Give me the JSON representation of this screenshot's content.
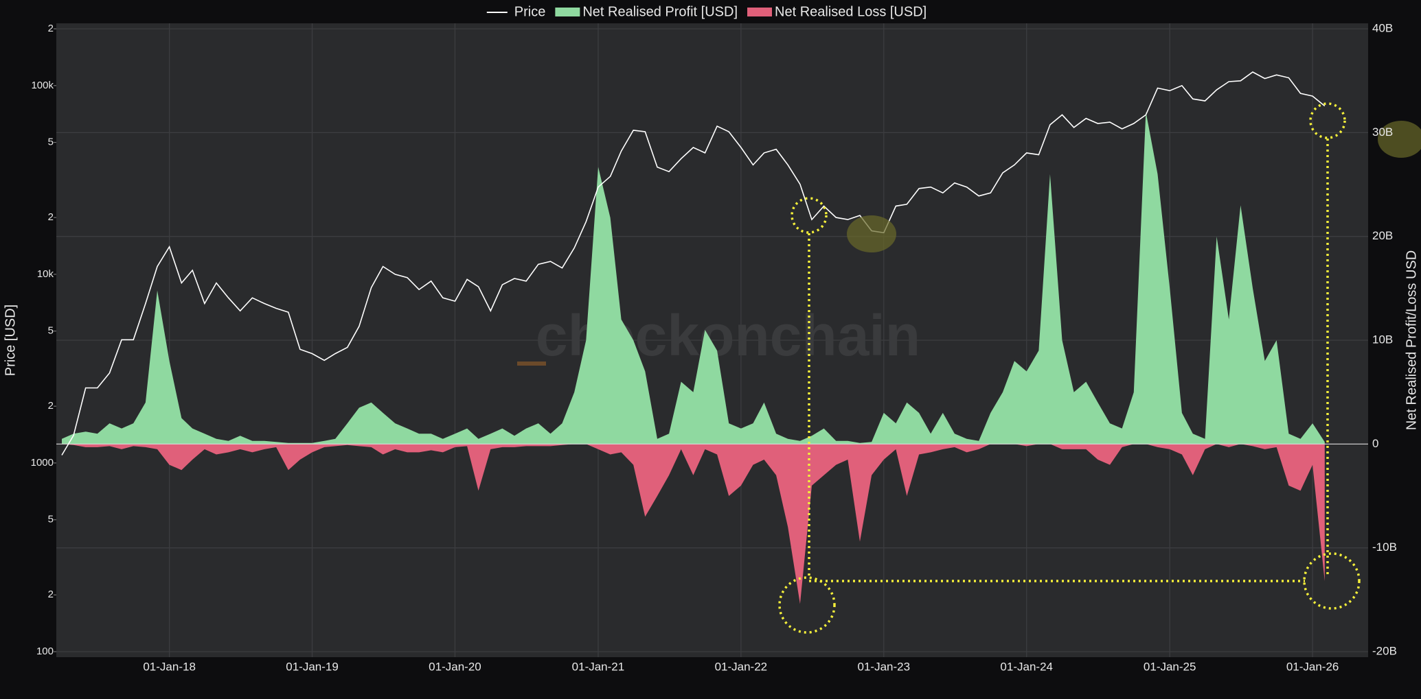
{
  "chart_data": {
    "type": "line-area",
    "watermark": "checkonchain",
    "y_label": "Price [USD]",
    "y2_label": "Net Realised Profit/Loss USD",
    "log_y": true,
    "grid": true,
    "legend": "top",
    "xlim": [
      "2017-03-18",
      "2026-05-23"
    ],
    "xticks": [
      {
        "value": "2018-01-01",
        "label": "01-Jan-18"
      },
      {
        "value": "2019-01-01",
        "label": "01-Jan-19"
      },
      {
        "value": "2020-01-01",
        "label": "01-Jan-20"
      },
      {
        "value": "2021-01-01",
        "label": "01-Jan-21"
      },
      {
        "value": "2022-01-01",
        "label": "01-Jan-22"
      },
      {
        "value": "2023-01-01",
        "label": "01-Jan-23"
      },
      {
        "value": "2024-01-01",
        "label": "01-Jan-24"
      },
      {
        "value": "2025-01-01",
        "label": "01-Jan-25"
      },
      {
        "value": "2026-01-01",
        "label": "01-Jan-26"
      }
    ],
    "ylim": [
      100,
      200000
    ],
    "yticks": [
      100,
      {
        "value": 200,
        "label": "2"
      },
      {
        "value": 500,
        "label": "5"
      },
      1000,
      {
        "value": 2000,
        "label": "2"
      },
      {
        "value": 5000,
        "label": "5"
      },
      {
        "value": 10000,
        "label": "10k"
      },
      {
        "value": 20000,
        "label": "2"
      },
      {
        "value": 50000,
        "label": "5"
      },
      {
        "value": 100000,
        "label": "100k"
      },
      {
        "value": 200000,
        "label": "2"
      }
    ],
    "y2lim": [
      -20,
      40
    ],
    "y2ticks": [
      {
        "value": -20,
        "label": "-20B"
      },
      {
        "value": -10,
        "label": "-10B"
      },
      0,
      {
        "value": 10,
        "label": "10B"
      },
      {
        "value": 20,
        "label": "20B"
      },
      {
        "value": 30,
        "label": "30B"
      },
      {
        "value": 40,
        "label": "40B"
      }
    ],
    "x": [
      "2017-04-01",
      "2017-05-01",
      "2017-06-01",
      "2017-07-01",
      "2017-08-01",
      "2017-09-01",
      "2017-10-01",
      "2017-11-01",
      "2017-12-01",
      "2018-01-01",
      "2018-02-01",
      "2018-03-01",
      "2018-04-01",
      "2018-05-01",
      "2018-06-01",
      "2018-07-01",
      "2018-08-01",
      "2018-09-01",
      "2018-10-01",
      "2018-11-01",
      "2018-12-01",
      "2019-01-01",
      "2019-02-01",
      "2019-03-01",
      "2019-04-01",
      "2019-05-01",
      "2019-06-01",
      "2019-07-01",
      "2019-08-01",
      "2019-09-01",
      "2019-10-01",
      "2019-11-01",
      "2019-12-01",
      "2020-01-01",
      "2020-02-01",
      "2020-03-01",
      "2020-04-01",
      "2020-05-01",
      "2020-06-01",
      "2020-07-01",
      "2020-08-01",
      "2020-09-01",
      "2020-10-01",
      "2020-11-01",
      "2020-12-01",
      "2021-01-01",
      "2021-02-01",
      "2021-03-01",
      "2021-04-01",
      "2021-05-01",
      "2021-06-01",
      "2021-07-01",
      "2021-08-01",
      "2021-09-01",
      "2021-10-01",
      "2021-11-01",
      "2021-12-01",
      "2022-01-01",
      "2022-02-01",
      "2022-03-01",
      "2022-04-01",
      "2022-05-01",
      "2022-06-01",
      "2022-07-01",
      "2022-08-01",
      "2022-09-01",
      "2022-10-01",
      "2022-11-01",
      "2022-12-01",
      "2023-01-01",
      "2023-02-01",
      "2023-03-01",
      "2023-04-01",
      "2023-05-01",
      "2023-06-01",
      "2023-07-01",
      "2023-08-01",
      "2023-09-01",
      "2023-10-01",
      "2023-11-01",
      "2023-12-01",
      "2024-01-01",
      "2024-02-01",
      "2024-03-01",
      "2024-04-01",
      "2024-05-01",
      "2024-06-01",
      "2024-07-01",
      "2024-08-01",
      "2024-09-01",
      "2024-10-01",
      "2024-11-01",
      "2024-12-01",
      "2025-01-01",
      "2025-02-01",
      "2025-03-01",
      "2025-04-01",
      "2025-05-01",
      "2025-06-01",
      "2025-07-01",
      "2025-08-01",
      "2025-09-01",
      "2025-10-01",
      "2025-11-01",
      "2025-12-01",
      "2026-01-01",
      "2026-02-01"
    ],
    "series": [
      {
        "name": "Price",
        "color": "#ffffff",
        "axis": "y",
        "values": [
          1100,
          1400,
          2500,
          2500,
          3000,
          4500,
          4500,
          7000,
          11000,
          14000,
          9000,
          10500,
          7000,
          9000,
          7500,
          6400,
          7500,
          7000,
          6600,
          6300,
          4000,
          3800,
          3500,
          3800,
          4100,
          5300,
          8500,
          11000,
          10000,
          9600,
          8300,
          9200,
          7500,
          7200,
          9400,
          8600,
          6400,
          8800,
          9500,
          9200,
          11300,
          11700,
          10800,
          13800,
          19000,
          29000,
          33000,
          45000,
          58000,
          57000,
          37000,
          35000,
          41000,
          47000,
          44000,
          61000,
          57000,
          47000,
          38000,
          44000,
          46000,
          38000,
          30000,
          19500,
          23000,
          20000,
          19500,
          20500,
          17000,
          16600,
          23000,
          23500,
          28500,
          29000,
          27000,
          30500,
          29000,
          26000,
          27000,
          34500,
          38000,
          44000,
          43000,
          62000,
          70000,
          60000,
          67000,
          63000,
          64000,
          59000,
          63000,
          70000,
          97000,
          94000,
          100000,
          85000,
          83000,
          95000,
          105000,
          106000,
          118000,
          109000,
          114000,
          110000,
          91000,
          88000,
          78000
        ]
      },
      {
        "name": "Net Realised Profit [USD]",
        "color": "#8fd9a0",
        "axis": "y2",
        "values": [
          0.5,
          1,
          1.2,
          1,
          2,
          1.5,
          2,
          4,
          14.8,
          8,
          2.5,
          1.5,
          1,
          0.5,
          0.3,
          0.8,
          0.3,
          0.3,
          0.2,
          0.1,
          0.1,
          0.1,
          0.3,
          0.5,
          2,
          3.5,
          4,
          3,
          2,
          1.5,
          1,
          1,
          0.5,
          1,
          1.5,
          0.5,
          1,
          1.5,
          0.8,
          1.5,
          2,
          1,
          2,
          5,
          10,
          26.7,
          21.8,
          12,
          10,
          7,
          0.5,
          1,
          6,
          5,
          11,
          9,
          2,
          1.5,
          2,
          4,
          1,
          0.5,
          0.3,
          0.8,
          1.5,
          0.3,
          0.3,
          0.1,
          0.2,
          3,
          2,
          4,
          3,
          1,
          3,
          1,
          0.5,
          0.3,
          3,
          5,
          8,
          7,
          9,
          26,
          10,
          5,
          6,
          4,
          2,
          1.5,
          5,
          32,
          26,
          15,
          3,
          1,
          0.5,
          20,
          12,
          23,
          15,
          8,
          10,
          1,
          0.5,
          2,
          0.2
        ]
      },
      {
        "name": "Net Realised Loss [USD]",
        "color": "#e0607a",
        "axis": "y2",
        "values": [
          0,
          -0.1,
          -0.3,
          -0.3,
          -0.2,
          -0.5,
          -0.2,
          -0.3,
          -0.5,
          -2,
          -2.5,
          -1.5,
          -0.5,
          -1,
          -0.8,
          -0.5,
          -0.8,
          -0.5,
          -0.3,
          -2.5,
          -1.5,
          -0.8,
          -0.3,
          -0.2,
          -0.1,
          -0.2,
          -0.3,
          -1,
          -0.5,
          -0.8,
          -0.8,
          -0.6,
          -0.8,
          -0.3,
          -0.2,
          -4.5,
          -0.5,
          -0.3,
          -0.3,
          -0.2,
          -0.2,
          -0.2,
          -0.1,
          0,
          0,
          -0.5,
          -1,
          -0.8,
          -2,
          -7,
          -5,
          -3,
          -0.5,
          -3,
          -0.5,
          -1,
          -5,
          -4,
          -2,
          -1.5,
          -3,
          -8,
          -15.4,
          -4,
          -3,
          -2,
          -1.5,
          -9.4,
          -3,
          -1.5,
          -0.5,
          -5,
          -1,
          -0.8,
          -0.5,
          -0.3,
          -0.8,
          -0.5,
          0,
          0,
          0,
          -0.2,
          0,
          0,
          -0.5,
          -0.5,
          -0.5,
          -1.5,
          -2,
          -0.3,
          0,
          0,
          -0.3,
          -0.5,
          -1,
          -3,
          -0.5,
          0,
          -0.3,
          0,
          -0.2,
          -0.5,
          -0.3,
          -4,
          -4.5,
          -2,
          -13.2
        ]
      }
    ]
  }
}
